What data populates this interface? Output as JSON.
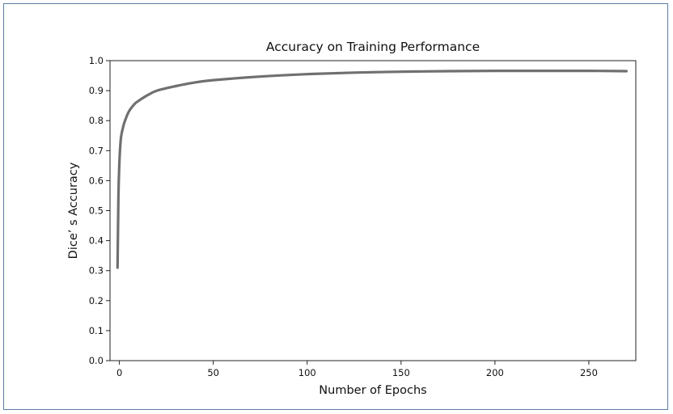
{
  "chart_data": {
    "type": "line",
    "title": "Accuracy on Training Performance",
    "xlabel": "Number of Epochs",
    "ylabel": "Dice’ s  Accuracy",
    "xlim": [
      -5,
      275
    ],
    "ylim": [
      0.0,
      1.0
    ],
    "xticks": [
      0,
      50,
      100,
      150,
      200,
      250
    ],
    "xtick_labels": [
      "0",
      "50",
      "100",
      "150",
      "200",
      "250"
    ],
    "yticks": [
      0.0,
      0.1,
      0.2,
      0.3,
      0.4,
      0.5,
      0.6,
      0.7,
      0.8,
      0.9,
      1.0
    ],
    "ytick_labels": [
      "0.0",
      "0.1",
      "0.2",
      "0.3",
      "0.4",
      "0.5",
      "0.6",
      "0.7",
      "0.8",
      "0.9",
      "1.0"
    ],
    "grid": false,
    "legend": false,
    "line_color": "#707070",
    "series": [
      {
        "x": [
          -1,
          -0.5,
          0,
          0.5,
          1,
          2,
          3,
          5,
          8,
          10,
          15,
          20,
          30,
          40,
          50,
          75,
          100,
          125,
          150,
          175,
          200,
          225,
          250,
          270
        ],
        "values": [
          0.31,
          0.55,
          0.66,
          0.72,
          0.75,
          0.78,
          0.8,
          0.83,
          0.855,
          0.865,
          0.885,
          0.9,
          0.915,
          0.927,
          0.935,
          0.947,
          0.955,
          0.96,
          0.963,
          0.965,
          0.966,
          0.966,
          0.966,
          0.965
        ]
      }
    ]
  }
}
